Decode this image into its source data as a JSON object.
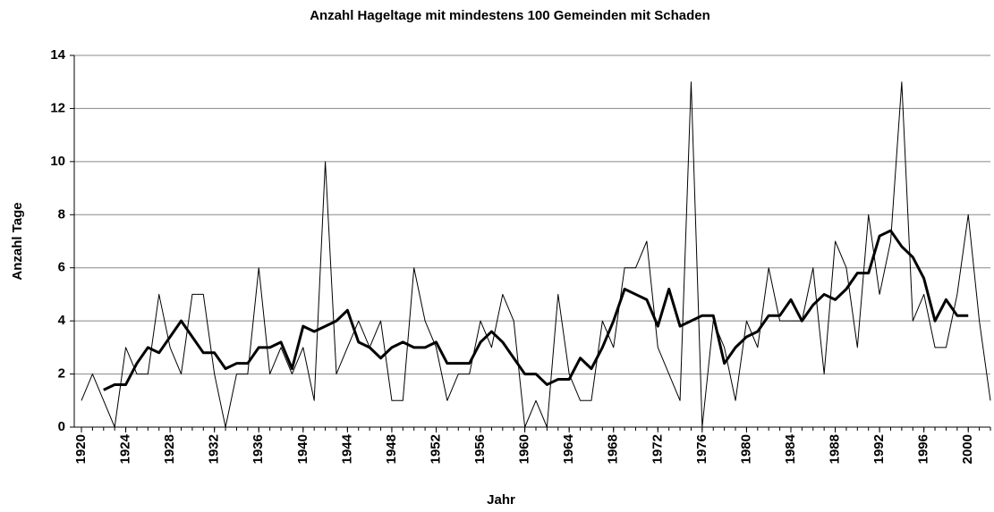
{
  "chart_data": {
    "type": "line",
    "title": "Anzahl Hageltage mit mindestens 100 Gemeinden mit Schaden",
    "xlabel": "Jahr",
    "ylabel": "Anzahl Tage",
    "x": [
      1920,
      1921,
      1922,
      1923,
      1924,
      1925,
      1926,
      1927,
      1928,
      1929,
      1930,
      1931,
      1932,
      1933,
      1934,
      1935,
      1936,
      1937,
      1938,
      1939,
      1940,
      1941,
      1942,
      1943,
      1944,
      1945,
      1946,
      1947,
      1948,
      1949,
      1950,
      1951,
      1952,
      1953,
      1954,
      1955,
      1956,
      1957,
      1958,
      1959,
      1960,
      1961,
      1962,
      1963,
      1964,
      1965,
      1966,
      1967,
      1968,
      1969,
      1970,
      1971,
      1972,
      1973,
      1974,
      1975,
      1976,
      1977,
      1978,
      1979,
      1980,
      1981,
      1982,
      1983,
      1984,
      1985,
      1986,
      1987,
      1988,
      1989,
      1990,
      1991,
      1992,
      1993,
      1994,
      1995,
      1996,
      1997,
      1998,
      1999,
      2000,
      2001,
      2002
    ],
    "series": [
      {
        "color": "#000000",
        "line_width": 1,
        "values": [
          1,
          2,
          1,
          0,
          3,
          2,
          2,
          5,
          3,
          2,
          5,
          5,
          2,
          0,
          2,
          2,
          6,
          2,
          3,
          2,
          3,
          1,
          10,
          2,
          3,
          4,
          3,
          4,
          1,
          1,
          6,
          4,
          3,
          1,
          2,
          2,
          4,
          3,
          5,
          4,
          0,
          1,
          0,
          5,
          2,
          1,
          1,
          4,
          3,
          6,
          6,
          7,
          3,
          2,
          1,
          13,
          0,
          4,
          3,
          1,
          4,
          3,
          6,
          4,
          4,
          4,
          6,
          2,
          7,
          6,
          3,
          8,
          5,
          7,
          13,
          4,
          5,
          3,
          3,
          5,
          8,
          4,
          1
        ]
      },
      {
        "color": "#000000",
        "line_width": 3,
        "values": [
          null,
          null,
          1.4,
          1.6,
          1.6,
          2.4,
          3,
          2.8,
          3.4,
          4,
          3.4,
          2.8,
          2.8,
          2.2,
          2.4,
          2.4,
          3,
          3,
          3.2,
          2.2,
          3.8,
          3.6,
          3.8,
          4,
          4.4,
          3.2,
          3,
          2.6,
          3,
          3.2,
          3,
          3,
          3.2,
          2.4,
          2.4,
          2.4,
          3.2,
          3.6,
          3.2,
          2.6,
          2,
          2,
          1.6,
          1.8,
          1.8,
          2.6,
          2.2,
          3,
          4,
          5.2,
          5,
          4.8,
          3.8,
          5.2,
          3.8,
          4,
          4.2,
          4.2,
          2.4,
          3,
          3.4,
          3.6,
          4.2,
          4.2,
          4.8,
          4,
          4.6,
          5,
          4.8,
          5.2,
          5.8,
          5.8,
          7.2,
          7.4,
          6.8,
          6.4,
          5.6,
          4,
          4.8,
          4.2,
          4.2,
          null,
          null
        ]
      }
    ],
    "xlim": [
      1920,
      2002
    ],
    "xticks": [
      1920,
      1924,
      1928,
      1932,
      1936,
      1940,
      1944,
      1948,
      1952,
      1956,
      1960,
      1964,
      1968,
      1972,
      1976,
      1980,
      1984,
      1988,
      1992,
      1996,
      2000
    ],
    "ylim": [
      0,
      14
    ],
    "yticks": [
      0,
      2,
      4,
      6,
      8,
      10,
      12,
      14
    ],
    "grid": true
  }
}
